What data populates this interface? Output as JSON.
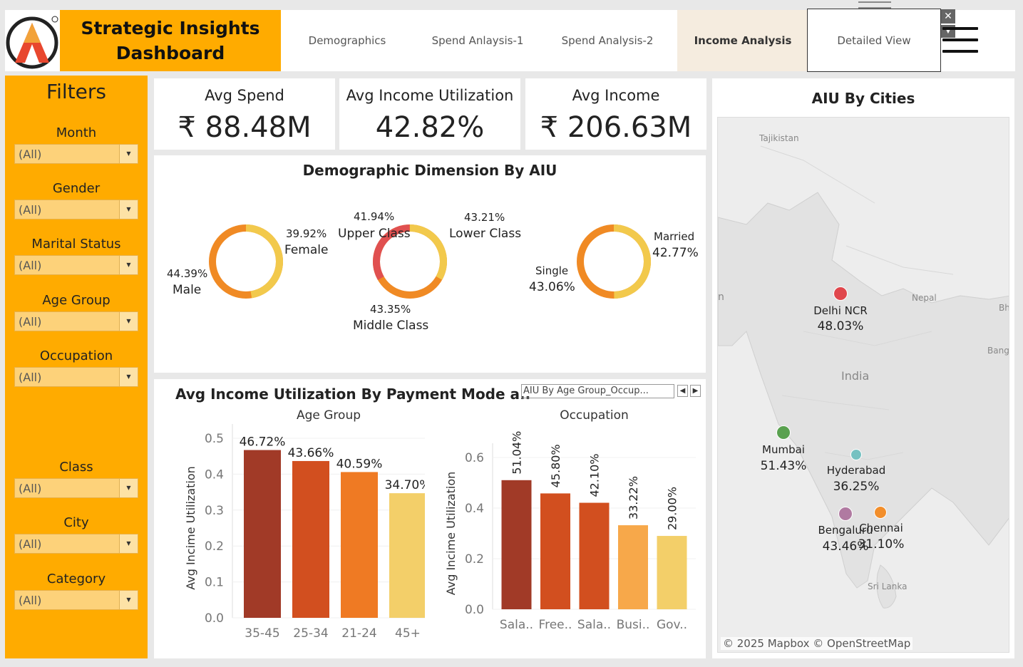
{
  "header": {
    "title": "Strategic Insights\nDashboard",
    "tabs": [
      {
        "label": "Demographics"
      },
      {
        "label": "Spend Anlaysis-1"
      },
      {
        "label": "Spend Analysis-2"
      },
      {
        "label": "Income Analysis"
      },
      {
        "label": "Detailed View"
      }
    ],
    "close_glyph": "✕",
    "menu_glyph": "▼"
  },
  "filters": {
    "title": "Filters",
    "items": [
      {
        "label": "Month",
        "value": "(All)"
      },
      {
        "label": "Gender",
        "value": "(All)"
      },
      {
        "label": "Marital Status",
        "value": "(All)"
      },
      {
        "label": "Age Group",
        "value": "(All)"
      },
      {
        "label": "Occupation",
        "value": "(All)"
      },
      {
        "label": "Class",
        "value": "(All)"
      },
      {
        "label": "City",
        "value": "(All)"
      },
      {
        "label": "Category",
        "value": "(All)"
      }
    ],
    "arrow_glyph": "▼"
  },
  "kpis": [
    {
      "title": "Avg Spend",
      "value": "₹ 88.48M"
    },
    {
      "title": "Avg Income Utilization",
      "value": "42.82%"
    },
    {
      "title": "Avg Income",
      "value": "₹ 206.63M"
    }
  ],
  "demographic": {
    "title": "Demographic Dimension By AIU",
    "gender": {
      "female_pct": "39.92%",
      "female_label": "Female",
      "male_pct": "44.39%",
      "male_label": "Male"
    },
    "class": {
      "upper_pct": "41.94%",
      "upper_label": "Upper Class",
      "lower_pct": "43.21%",
      "lower_label": "Lower Class",
      "middle_pct": "43.35%",
      "middle_label": "Middle Class"
    },
    "marital": {
      "married_label": "Married",
      "married_pct": "42.77%",
      "single_label": "Single",
      "single_pct": "43.06%"
    },
    "colors": {
      "orange": "#f08a24",
      "yellow": "#f2c94c",
      "red": "#e05050"
    }
  },
  "payment": {
    "title": "Avg Income Utilization By Payment Mode a..",
    "selector": "AIU By Age Group_Occup...",
    "prev_glyph": "◀",
    "next_glyph": "▶"
  },
  "chart_data": [
    {
      "type": "bar",
      "title": "Age Group",
      "ylabel": "Avg Incime Utilization",
      "categories": [
        "35-45",
        "25-34",
        "21-24",
        "45+"
      ],
      "values": [
        0.4672,
        0.4366,
        0.4059,
        0.347
      ],
      "data_labels": [
        "46.72%",
        "43.66%",
        "40.59%",
        "34.70%"
      ],
      "colors": [
        "#a13a27",
        "#d24f1f",
        "#ef7a23",
        "#f3cf69"
      ],
      "ylim": [
        0,
        0.5
      ],
      "yticks": [
        "0.0",
        "0.1",
        "0.2",
        "0.3",
        "0.4",
        "0.5"
      ]
    },
    {
      "type": "bar",
      "title": "Occupation",
      "ylabel": "Avg Incime Utilization",
      "categories": [
        "Sala..",
        "Free..",
        "Sala..",
        "Busi..",
        "Gov.."
      ],
      "values": [
        0.5104,
        0.458,
        0.421,
        0.3322,
        0.29
      ],
      "data_labels": [
        "51.04%",
        "45.80%",
        "42.10%",
        "33.22%",
        "29.00%"
      ],
      "colors": [
        "#a13a27",
        "#d24f1f",
        "#d24f1f",
        "#f7a84a",
        "#f3cf69"
      ],
      "ylim": [
        0,
        0.6
      ],
      "yticks": [
        "0.0",
        "0.2",
        "0.4",
        "0.6"
      ]
    }
  ],
  "map": {
    "title": "AIU By Cities",
    "attribution": "© 2025 Mapbox © OpenStreetMap",
    "labels": [
      "Tajikistan",
      "Nepal",
      "India",
      "Sri Lanka",
      "Bhu",
      "Bangl",
      "n"
    ],
    "cities": [
      {
        "name": "Delhi NCR",
        "value": "48.03%",
        "color": "#e0474c"
      },
      {
        "name": "Mumbai",
        "value": "51.43%",
        "color": "#59a14f"
      },
      {
        "name": "Hyderabad",
        "value": "36.25%",
        "color": "#76c1c1"
      },
      {
        "name": "Bengaluru",
        "value": "43.46%",
        "color": "#b07aa1"
      },
      {
        "name": "Chennai",
        "value": "31.10%",
        "color": "#f28e2b"
      }
    ]
  }
}
